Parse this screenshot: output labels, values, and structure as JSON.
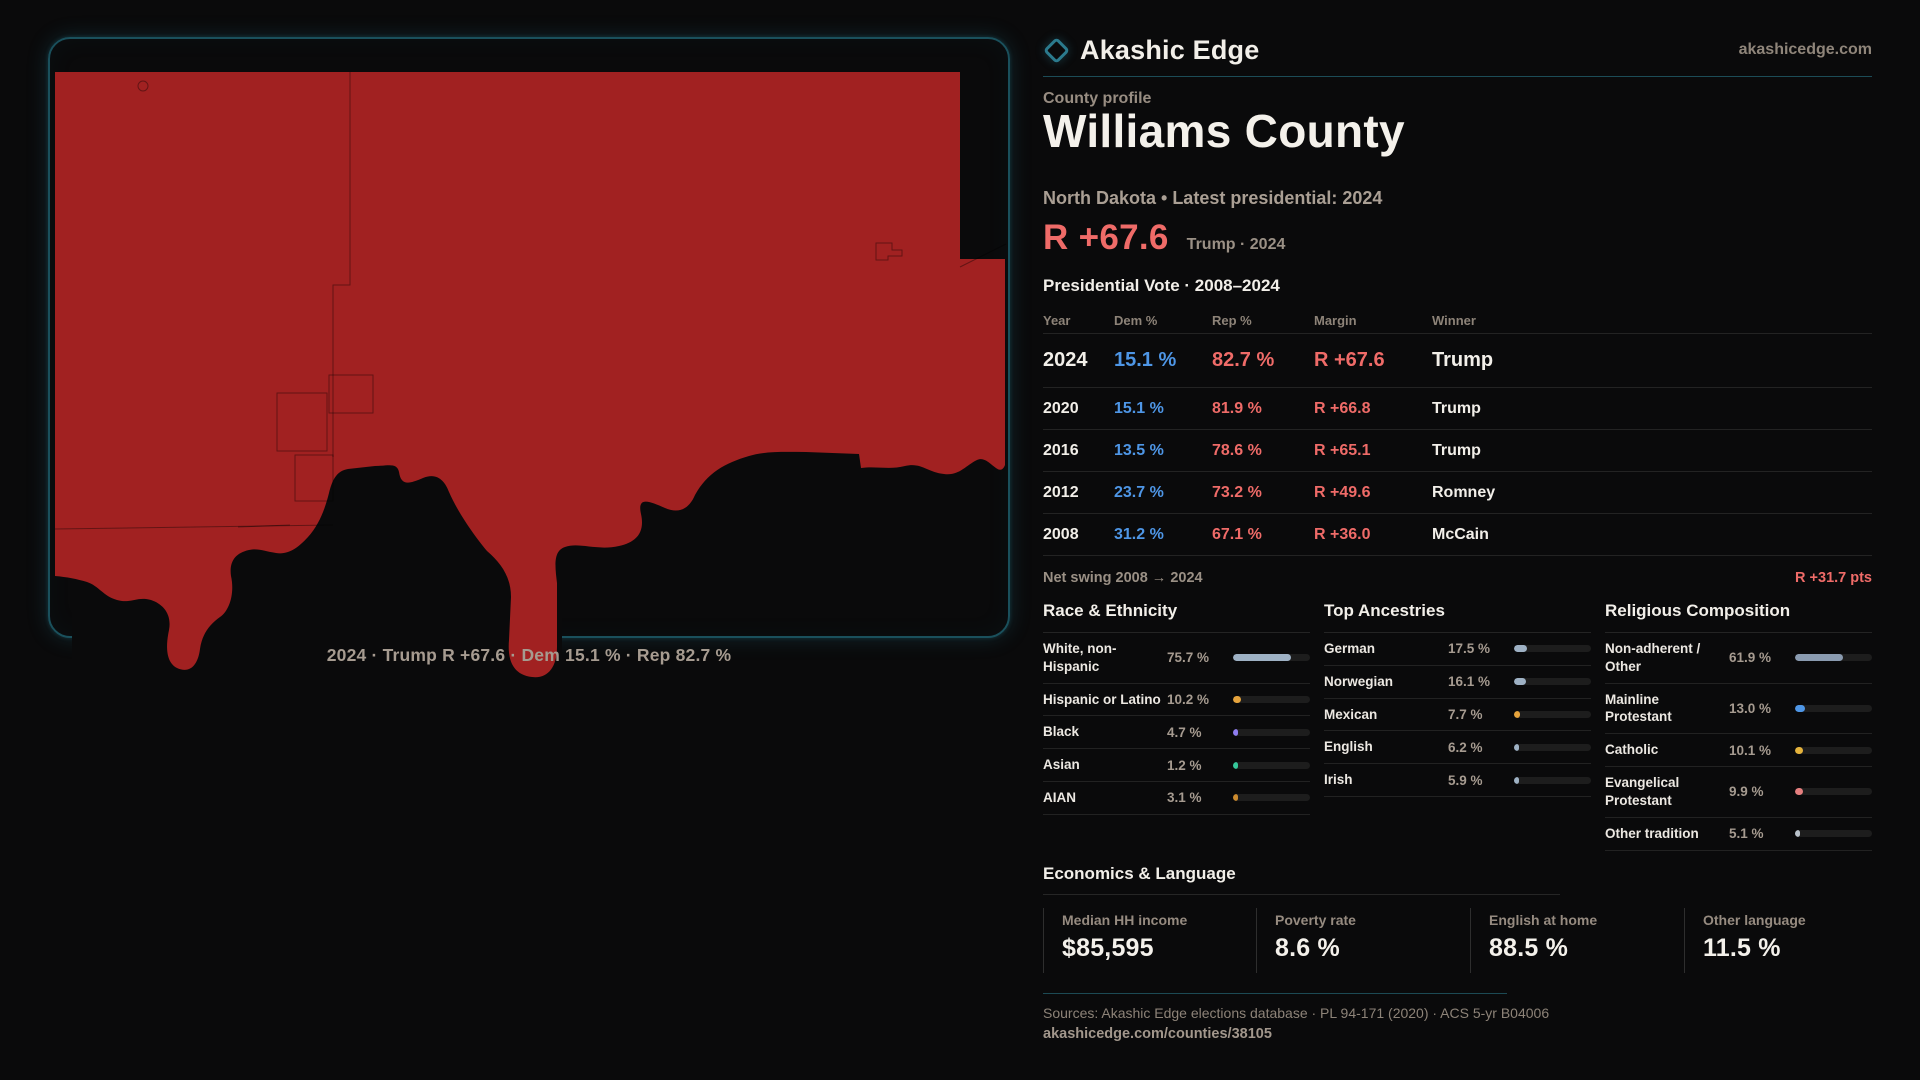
{
  "brand": {
    "name": "Akashic Edge",
    "domain": "akashicedge.com",
    "accent_teal": "#2b7a8d"
  },
  "map": {
    "caption": "2024 · Trump R +67.6 · Dem 15.1 % · Rep 82.7 %",
    "county_fill": "#a12121",
    "panel_border": "#1a505c"
  },
  "profile": {
    "eyebrow": "County profile",
    "title": "Williams County",
    "subtitle": "North Dakota • Latest presidential: 2024",
    "headline_margin": "R +67.6",
    "headline_note": "Trump · 2024"
  },
  "vote_table": {
    "title": "Presidential Vote · 2008–2024",
    "columns": [
      "Year",
      "Dem %",
      "Rep %",
      "Margin",
      "Winner"
    ],
    "rows": [
      {
        "year": "2024",
        "dem": "15.1 %",
        "rep": "82.7 %",
        "margin": "R +67.6",
        "winner": "Trump",
        "emphasis": true
      },
      {
        "year": "2020",
        "dem": "15.1 %",
        "rep": "81.9 %",
        "margin": "R +66.8",
        "winner": "Trump",
        "emphasis": false
      },
      {
        "year": "2016",
        "dem": "13.5 %",
        "rep": "78.6 %",
        "margin": "R +65.1",
        "winner": "Trump",
        "emphasis": false
      },
      {
        "year": "2012",
        "dem": "23.7 %",
        "rep": "73.2 %",
        "margin": "R +49.6",
        "winner": "Romney",
        "emphasis": false
      },
      {
        "year": "2008",
        "dem": "31.2 %",
        "rep": "67.1 %",
        "margin": "R +36.0",
        "winner": "McCain",
        "emphasis": false
      }
    ],
    "net_swing_label": "Net swing 2008 → 2024",
    "net_swing_value": "R +31.7 pts",
    "colors": {
      "dem": "#4e96e6",
      "rep": "#ef6b68"
    }
  },
  "demographics": [
    {
      "title": "Race & Ethnicity",
      "rows": [
        {
          "label": "White, non-Hispanic",
          "value": "75.7 %",
          "percent": 75.7,
          "color": "#9eb1c4"
        },
        {
          "label": "Hispanic or Latino",
          "value": "10.2 %",
          "percent": 10.2,
          "color": "#e5a33c"
        },
        {
          "label": "Black",
          "value": "4.7 %",
          "percent": 4.7,
          "color": "#8f7df0"
        },
        {
          "label": "Asian",
          "value": "1.2 %",
          "percent": 1.2,
          "color": "#35c79a"
        },
        {
          "label": "AIAN",
          "value": "3.1 %",
          "percent": 3.1,
          "color": "#cc8a2e"
        }
      ]
    },
    {
      "title": "Top Ancestries",
      "rows": [
        {
          "label": "German",
          "value": "17.5 %",
          "percent": 17.5,
          "color": "#9eb1c4"
        },
        {
          "label": "Norwegian",
          "value": "16.1 %",
          "percent": 16.1,
          "color": "#9eb1c4"
        },
        {
          "label": "Mexican",
          "value": "7.7 %",
          "percent": 7.7,
          "color": "#e5a33c"
        },
        {
          "label": "English",
          "value": "6.2 %",
          "percent": 6.2,
          "color": "#9eb1c4"
        },
        {
          "label": "Irish",
          "value": "5.9 %",
          "percent": 5.9,
          "color": "#9eb1c4"
        }
      ]
    },
    {
      "title": "Religious Composition",
      "rows": [
        {
          "label": "Non-adherent / Other",
          "value": "61.9 %",
          "percent": 61.9,
          "color": "#8a9bb0"
        },
        {
          "label": "Mainline Protestant",
          "value": "13.0 %",
          "percent": 13.0,
          "color": "#4e96e6"
        },
        {
          "label": "Catholic",
          "value": "10.1 %",
          "percent": 10.1,
          "color": "#e5b33c"
        },
        {
          "label": "Evangelical Protestant",
          "value": "9.9 %",
          "percent": 9.9,
          "color": "#e57f7f"
        },
        {
          "label": "Other tradition",
          "value": "5.1 %",
          "percent": 5.1,
          "color": "#b9c2cb"
        }
      ]
    }
  ],
  "economics": {
    "title": "Economics & Language",
    "stats": [
      {
        "label": "Median HH income",
        "value": "$85,595"
      },
      {
        "label": "Poverty rate",
        "value": "8.6 %"
      },
      {
        "label": "English at home",
        "value": "88.5 %"
      },
      {
        "label": "Other language",
        "value": "11.5 %"
      }
    ]
  },
  "footer": {
    "sources": "Sources: Akashic Edge elections database · PL 94-171 (2020) · ACS 5-yr B04006",
    "permalink": "akashicedge.com/counties/38105"
  }
}
